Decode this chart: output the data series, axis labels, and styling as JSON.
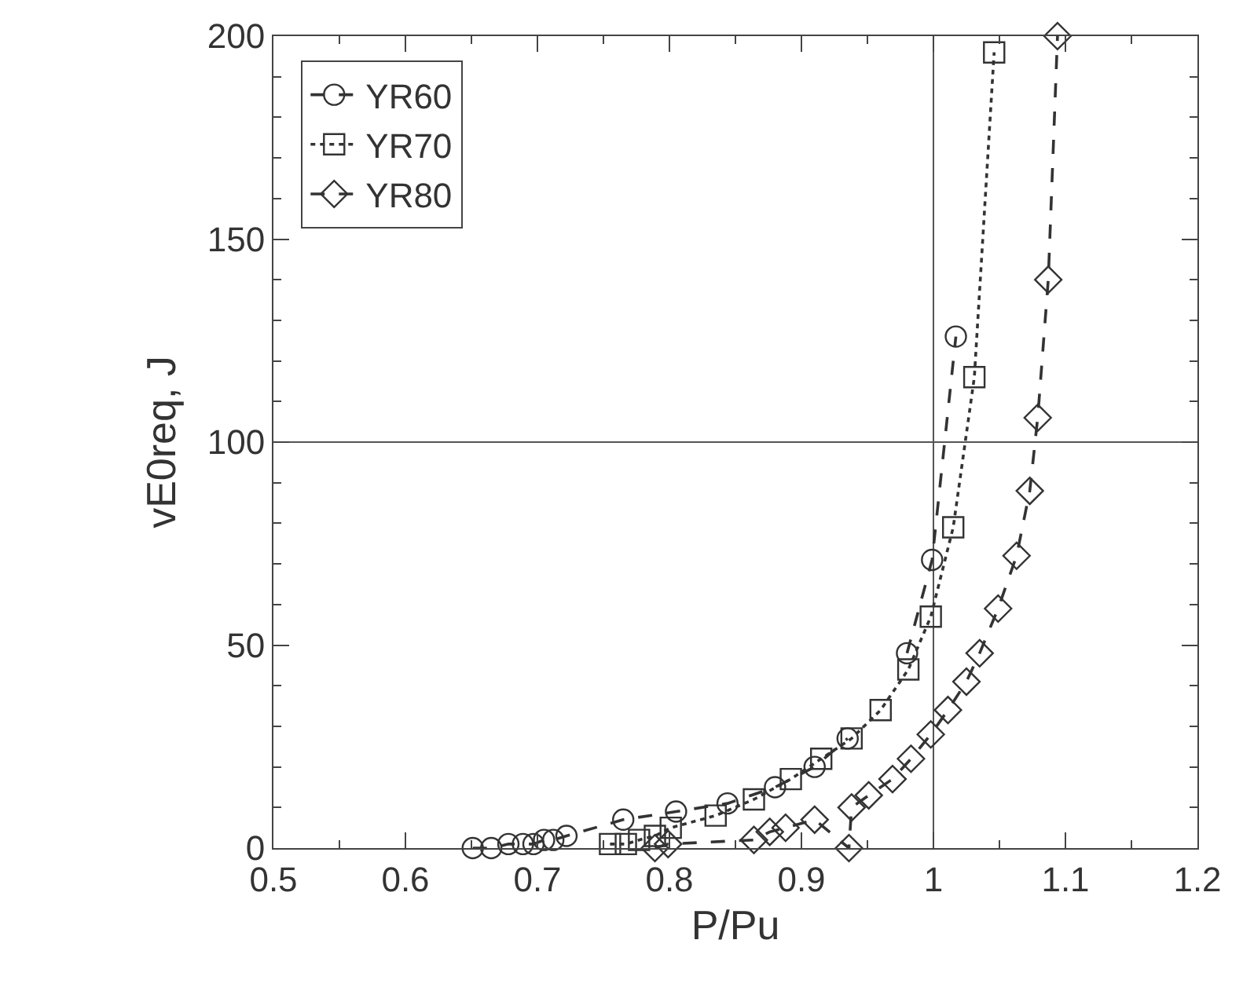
{
  "chart_data": {
    "type": "line",
    "xlabel": "P/Pu",
    "ylabel": "vE0req, J",
    "xlim": [
      0.5,
      1.2
    ],
    "xticks": [
      0.5,
      0.6,
      0.7,
      0.8,
      0.9,
      {
        "value": 1,
        "label": "1"
      },
      1.1,
      1.2
    ],
    "ylim": [
      0,
      200
    ],
    "yticks": [
      0,
      50,
      100,
      150,
      200
    ],
    "grid": false,
    "legend": "top left",
    "ref_lines": [
      {
        "axis": "x",
        "value": 1,
        "color": "#555555"
      },
      {
        "axis": "y",
        "value": 100,
        "color": "#555555"
      }
    ],
    "series": [
      {
        "name": "YR60",
        "color": "#333333",
        "marker": "circle",
        "line_style": "dashed",
        "x": [
          0.651,
          0.665,
          0.678,
          0.689,
          0.697,
          0.705,
          0.712,
          0.722,
          0.765,
          0.805,
          0.844,
          0.88,
          0.91,
          0.935,
          0.96,
          0.98,
          0.999,
          1.017
        ],
        "values": [
          0,
          0,
          1,
          1,
          1,
          2,
          2,
          3,
          7,
          9,
          11,
          15,
          20,
          27,
          null,
          48,
          71,
          126
        ]
      },
      {
        "name": "YR70",
        "color": "#333333",
        "marker": "square",
        "line_style": "dotted",
        "x": [
          0.755,
          0.767,
          0.777,
          0.789,
          0.801,
          0.835,
          0.864,
          0.892,
          0.915,
          0.938,
          0.96,
          0.981,
          0.998,
          1.015,
          1.031,
          1.046
        ],
        "values": [
          1,
          1,
          2,
          3,
          5,
          8,
          12,
          17,
          22,
          27,
          34,
          44,
          57,
          79,
          116,
          196
        ]
      },
      {
        "name": "YR80",
        "color": "#333333",
        "marker": "diamond",
        "line_style": "dashed",
        "x": [
          0.789,
          0.799,
          0.864,
          0.876,
          0.888,
          0.91,
          0.936,
          0.938,
          0.951,
          0.969,
          0.983,
          0.998,
          1.011,
          1.025,
          1.035,
          1.049,
          1.063,
          1.073,
          1.079,
          1.087,
          1.094
        ],
        "values": [
          0,
          1,
          2,
          4,
          5,
          7,
          0,
          10,
          13,
          17,
          22,
          28,
          34,
          41,
          48,
          59,
          72,
          88,
          106,
          140,
          200
        ]
      }
    ]
  }
}
